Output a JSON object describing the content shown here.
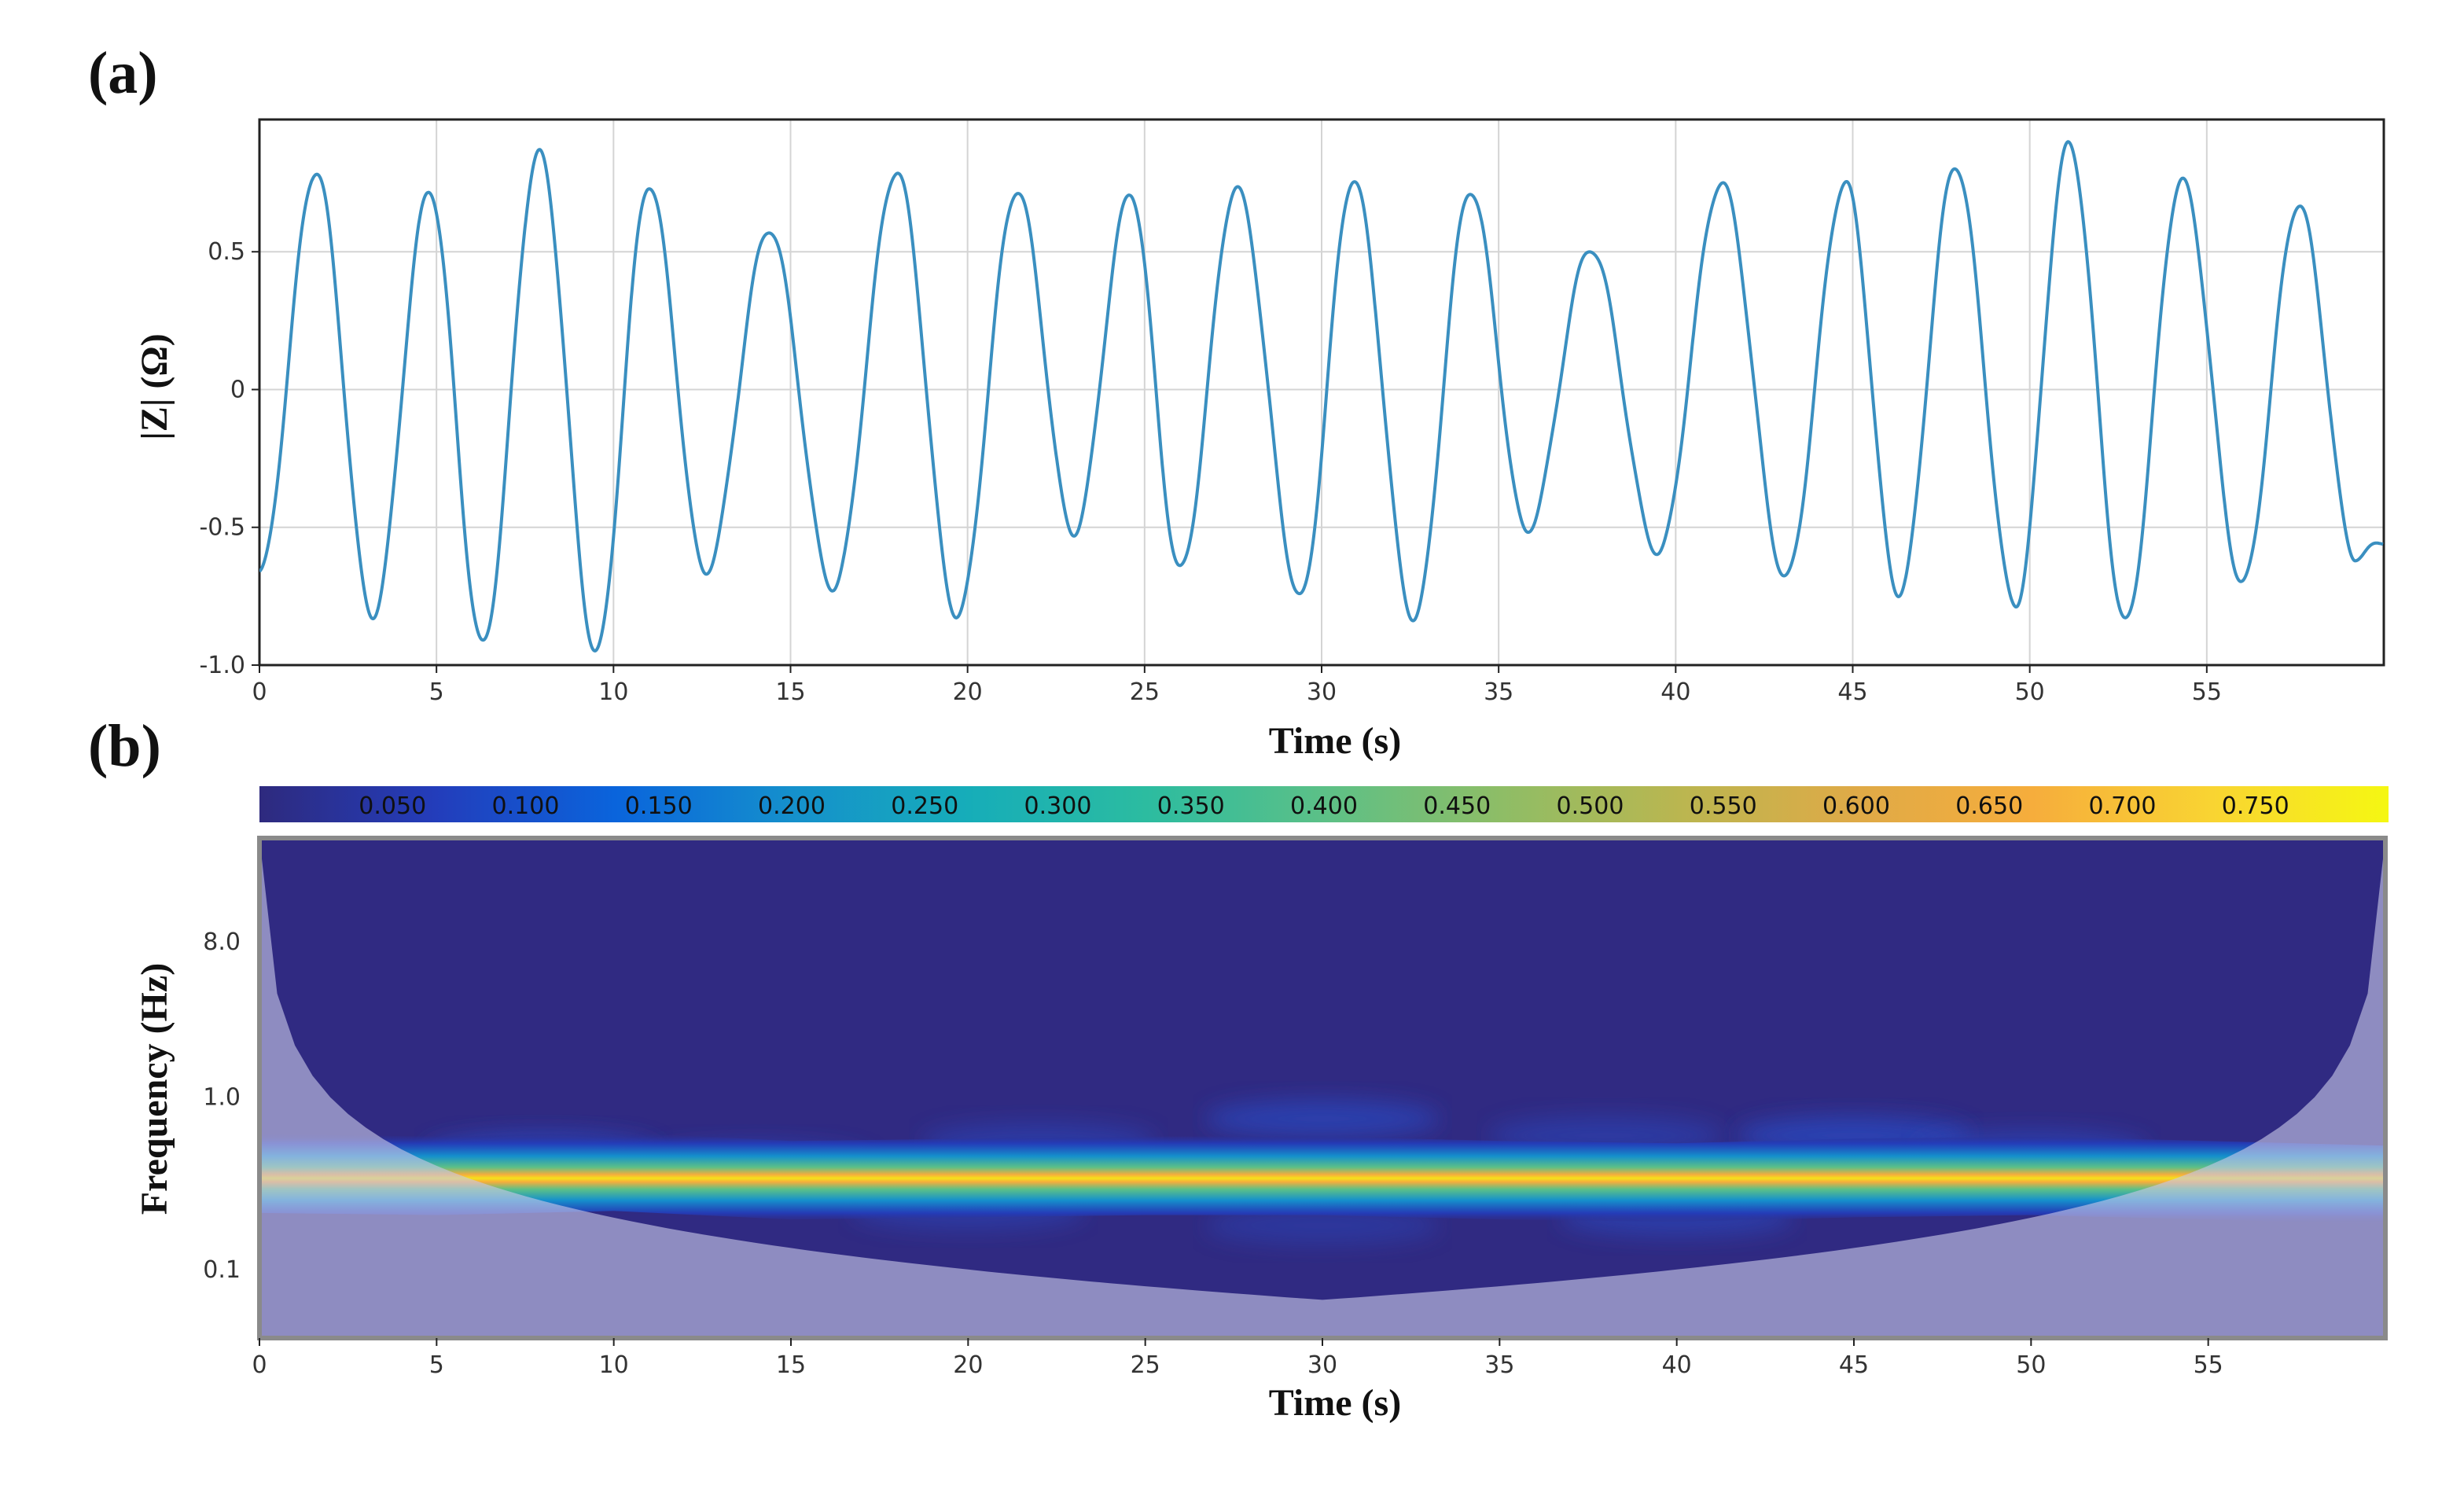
{
  "chart_data": [
    {
      "type": "line",
      "panel_label": "(a)",
      "xlabel": "Time (s)",
      "ylabel": "|Z| (Ω)",
      "xlim": [
        0,
        60
      ],
      "ylim": [
        -1.0,
        0.98
      ],
      "xticks": [
        "0",
        "5",
        "10",
        "15",
        "20",
        "25",
        "30",
        "35",
        "40",
        "45",
        "50",
        "55"
      ],
      "yticks": [
        {
          "value": 0.5,
          "label": "0.5"
        },
        {
          "value": 0,
          "label": "0"
        },
        {
          "value": -0.5,
          "label": "-0.5"
        },
        {
          "value": -1.0,
          "label": "-1.0"
        }
      ],
      "grid": true,
      "line_color": "#3a8fc0",
      "series": [
        {
          "name": "|Z|",
          "extrema": [
            [
              0.0,
              -0.66
            ],
            [
              1.6,
              0.79
            ],
            [
              3.2,
              -0.82
            ],
            [
              4.8,
              0.72
            ],
            [
              6.3,
              -0.92
            ],
            [
              7.9,
              0.86
            ],
            [
              9.5,
              -0.95
            ],
            [
              11.0,
              0.74
            ],
            [
              12.6,
              -0.66
            ],
            [
              14.4,
              0.58
            ],
            [
              16.2,
              -0.72
            ],
            [
              18.0,
              0.79
            ],
            [
              19.7,
              -0.82
            ],
            [
              21.4,
              0.72
            ],
            [
              23.0,
              -0.52
            ],
            [
              24.6,
              0.71
            ],
            [
              26.0,
              -0.65
            ],
            [
              27.6,
              0.73
            ],
            [
              29.4,
              -0.75
            ],
            [
              30.9,
              0.76
            ],
            [
              32.6,
              -0.83
            ],
            [
              34.2,
              0.72
            ],
            [
              35.8,
              -0.51
            ],
            [
              37.6,
              0.51
            ],
            [
              39.5,
              -0.59
            ],
            [
              41.3,
              0.75
            ],
            [
              43.1,
              -0.68
            ],
            [
              44.8,
              0.75
            ],
            [
              46.3,
              -0.74
            ],
            [
              47.9,
              0.81
            ],
            [
              49.6,
              -0.78
            ],
            [
              51.1,
              0.89
            ],
            [
              52.7,
              -0.84
            ],
            [
              54.3,
              0.76
            ],
            [
              56.0,
              -0.7
            ],
            [
              57.6,
              0.67
            ],
            [
              59.2,
              -0.61
            ],
            [
              60.0,
              -0.55
            ]
          ]
        }
      ]
    },
    {
      "type": "heatmap",
      "panel_label": "(b)",
      "xlabel": "Time (s)",
      "ylabel": "Frequency (Hz)",
      "xlim": [
        0,
        60
      ],
      "ylim": [
        0.04,
        32
      ],
      "yscale": "log",
      "xticks": [
        "0",
        "5",
        "10",
        "15",
        "20",
        "25",
        "30",
        "35",
        "40",
        "45",
        "50",
        "55"
      ],
      "yticks": [
        {
          "value": 8.0,
          "label": "8.0"
        },
        {
          "value": 1.0,
          "label": "1.0"
        },
        {
          "value": 0.1,
          "label": "0.1"
        }
      ],
      "colorbar": {
        "ticks": [
          "0.050",
          "0.100",
          "0.150",
          "0.200",
          "0.250",
          "0.300",
          "0.350",
          "0.400",
          "0.450",
          "0.500",
          "0.550",
          "0.600",
          "0.650",
          "0.700",
          "0.750"
        ],
        "range": [
          0,
          0.8
        ],
        "colors": [
          "#2e2a7e",
          "#233dbb",
          "#0a64dc",
          "#1590cc",
          "#16adb9",
          "#2cbca0",
          "#5cc087",
          "#8ebd66",
          "#bab650",
          "#dfaa47",
          "#f6ad3c",
          "#f9d432",
          "#f5f712"
        ]
      },
      "ridge": {
        "frequency_hz": 0.35,
        "peak_value": 0.78,
        "track": [
          [
            0,
            0.36
          ],
          [
            5,
            0.35
          ],
          [
            10,
            0.37
          ],
          [
            15,
            0.33
          ],
          [
            20,
            0.34
          ],
          [
            25,
            0.35
          ],
          [
            30,
            0.35
          ],
          [
            35,
            0.33
          ],
          [
            40,
            0.32
          ],
          [
            45,
            0.34
          ],
          [
            50,
            0.35
          ],
          [
            55,
            0.33
          ],
          [
            60,
            0.31
          ]
        ]
      },
      "background_color": "#302a82",
      "coi_overlay_color": "#c8c8e8"
    }
  ]
}
